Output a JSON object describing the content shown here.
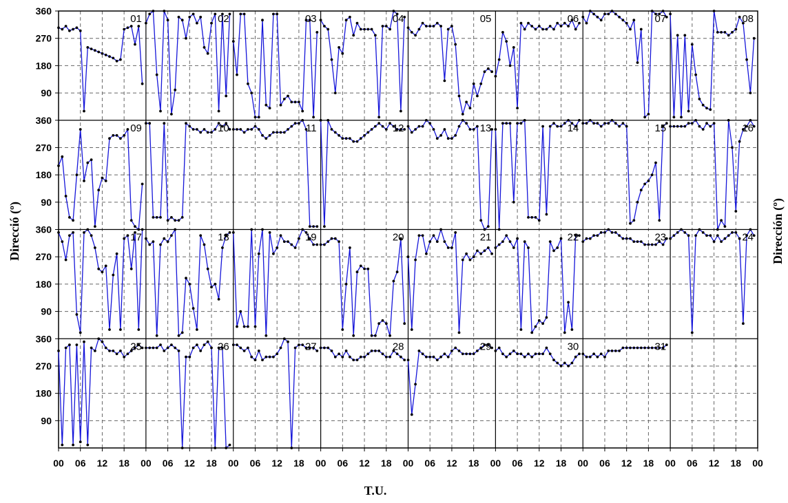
{
  "chart_data": {
    "type": "line",
    "ylabel_left": "Direcció (º)",
    "ylabel_right": "Dirección (º)",
    "xlabel": "T.U.",
    "y_ticks": [
      "360",
      "270",
      "180",
      "90"
    ],
    "x_ticks": [
      "00",
      "06",
      "12",
      "18",
      "00",
      "06",
      "12",
      "18",
      "00",
      "06",
      "12",
      "18",
      "00",
      "06",
      "12",
      "18",
      "00",
      "06",
      "12",
      "18",
      "00",
      "06",
      "12",
      "18",
      "00",
      "06",
      "12",
      "18",
      "00",
      "06",
      "12",
      "18",
      "00"
    ],
    "ylim": [
      0,
      360
    ],
    "x_hours_per_day": 24,
    "days_per_row": 8,
    "rows": 4,
    "grid": true,
    "colors": {
      "line": "#1515d9",
      "point": "#000000",
      "frame": "#000000",
      "grid": "#666666"
    },
    "days": [
      {
        "label": "01",
        "values": [
          305,
          300,
          310,
          295,
          300,
          305,
          295,
          30,
          240,
          235,
          230,
          225,
          220,
          215,
          210,
          205,
          195,
          200,
          300,
          305,
          310,
          250,
          310,
          120
        ]
      },
      {
        "label": "02",
        "values": [
          320,
          350,
          360,
          150,
          30,
          360,
          330,
          20,
          100,
          340,
          330,
          270,
          340,
          350,
          320,
          340,
          240,
          220,
          320,
          350,
          30,
          350,
          80,
          350
        ]
      },
      {
        "label": "03",
        "values": [
          260,
          150,
          350,
          350,
          120,
          90,
          10,
          10,
          330,
          50,
          40,
          350,
          350,
          50,
          70,
          80,
          60,
          60,
          60,
          30,
          330,
          330,
          10,
          290
        ]
      },
      {
        "label": "04",
        "values": [
          330,
          310,
          300,
          200,
          90,
          240,
          220,
          330,
          340,
          280,
          320,
          300,
          300,
          300,
          300,
          280,
          10,
          310,
          310,
          300,
          360,
          350,
          30,
          340
        ]
      },
      {
        "label": "05",
        "values": [
          305,
          290,
          280,
          300,
          320,
          310,
          310,
          310,
          320,
          310,
          130,
          300,
          310,
          250,
          80,
          20,
          60,
          40,
          120,
          80,
          120,
          160,
          170,
          160
        ]
      },
      {
        "label": "06",
        "values": [
          145,
          200,
          290,
          260,
          180,
          240,
          40,
          320,
          300,
          320,
          310,
          300,
          310,
          300,
          300,
          310,
          300,
          320,
          310,
          320,
          310,
          330,
          300,
          320
        ]
      },
      {
        "label": "07",
        "values": [
          340,
          320,
          360,
          350,
          340,
          330,
          350,
          350,
          360,
          350,
          340,
          330,
          320,
          300,
          330,
          190,
          300,
          10,
          20,
          360,
          350,
          350,
          360,
          340
        ]
      },
      {
        "label": "08",
        "values": [
          350,
          10,
          280,
          10,
          280,
          30,
          250,
          150,
          70,
          50,
          40,
          35,
          360,
          290,
          290,
          290,
          280,
          290,
          300,
          340,
          320,
          200,
          90,
          270
        ]
      },
      {
        "label": "09",
        "values": [
          210,
          240,
          110,
          40,
          30,
          180,
          330,
          160,
          220,
          230,
          10,
          130,
          170,
          160,
          300,
          310,
          310,
          300,
          310,
          330,
          30,
          10,
          0,
          150
        ]
      },
      {
        "label": "10",
        "values": [
          350,
          350,
          40,
          40,
          40,
          350,
          30,
          40,
          30,
          30,
          40,
          350,
          340,
          330,
          330,
          320,
          330,
          320,
          320,
          330,
          350,
          340,
          350,
          330
        ]
      },
      {
        "label": "11",
        "values": [
          330,
          330,
          330,
          320,
          330,
          330,
          340,
          330,
          310,
          300,
          310,
          320,
          320,
          320,
          320,
          330,
          340,
          350,
          350,
          360,
          330,
          10,
          10,
          10
        ]
      },
      {
        "label": "12",
        "values": [
          360,
          10,
          360,
          330,
          320,
          310,
          300,
          300,
          300,
          290,
          290,
          300,
          310,
          320,
          330,
          340,
          350,
          340,
          330,
          350,
          340,
          330,
          330,
          330
        ]
      },
      {
        "label": "13",
        "values": [
          340,
          320,
          330,
          340,
          340,
          360,
          350,
          330,
          300,
          310,
          330,
          300,
          300,
          310,
          340,
          360,
          350,
          330,
          330,
          340,
          30,
          0,
          10,
          330
        ]
      },
      {
        "label": "14",
        "values": [
          330,
          0,
          350,
          350,
          350,
          90,
          350,
          350,
          360,
          40,
          40,
          40,
          30,
          340,
          50,
          340,
          350,
          340,
          340,
          350,
          360,
          350,
          340,
          360
        ]
      },
      {
        "label": "15",
        "values": [
          350,
          350,
          360,
          350,
          350,
          340,
          350,
          350,
          360,
          350,
          340,
          350,
          340,
          20,
          30,
          90,
          130,
          150,
          160,
          180,
          220,
          30,
          340,
          350
        ]
      },
      {
        "label": "16",
        "values": [
          340,
          340,
          340,
          340,
          340,
          350,
          350,
          360,
          340,
          330,
          350,
          340,
          350,
          0,
          30,
          10,
          360,
          270,
          60,
          290,
          330,
          340,
          360,
          340
        ]
      },
      {
        "label": "17",
        "values": [
          350,
          320,
          260,
          340,
          350,
          80,
          20,
          350,
          360,
          340,
          300,
          230,
          220,
          240,
          30,
          210,
          280,
          30,
          330,
          340,
          230,
          350,
          30,
          360
        ]
      },
      {
        "label": "18",
        "values": [
          330,
          310,
          320,
          10,
          310,
          330,
          320,
          340,
          360,
          10,
          20,
          200,
          180,
          100,
          30,
          340,
          310,
          230,
          170,
          180,
          130,
          300,
          340,
          350
        ]
      },
      {
        "label": "19",
        "values": [
          350,
          40,
          90,
          40,
          40,
          360,
          40,
          280,
          360,
          10,
          350,
          280,
          300,
          340,
          320,
          320,
          310,
          300,
          330,
          360,
          350,
          330,
          310,
          310
        ]
      },
      {
        "label": "20",
        "values": [
          310,
          310,
          320,
          330,
          330,
          320,
          30,
          180,
          300,
          10,
          220,
          240,
          230,
          230,
          10,
          10,
          50,
          60,
          50,
          10,
          190,
          220,
          330,
          50
        ]
      },
      {
        "label": "21",
        "values": [
          270,
          30,
          260,
          340,
          340,
          280,
          320,
          340,
          320,
          360,
          320,
          300,
          300,
          350,
          20,
          260,
          280,
          260,
          270,
          290,
          280,
          290,
          300,
          280
        ]
      },
      {
        "label": "22",
        "values": [
          300,
          310,
          320,
          340,
          320,
          300,
          330,
          30,
          320,
          300,
          20,
          40,
          60,
          50,
          70,
          320,
          290,
          300,
          330,
          20,
          120,
          30,
          340,
          340
        ]
      },
      {
        "label": "23",
        "values": [
          320,
          330,
          330,
          340,
          340,
          350,
          350,
          360,
          350,
          350,
          340,
          330,
          330,
          330,
          320,
          320,
          320,
          310,
          310,
          310,
          310,
          320,
          310,
          330
        ]
      },
      {
        "label": "24",
        "values": [
          330,
          340,
          350,
          360,
          350,
          340,
          20,
          340,
          360,
          350,
          340,
          340,
          320,
          340,
          320,
          330,
          340,
          350,
          350,
          330,
          50,
          340,
          360,
          340
        ]
      },
      {
        "label": "25",
        "values": [
          320,
          10,
          330,
          340,
          10,
          340,
          20,
          350,
          10,
          330,
          320,
          360,
          350,
          330,
          320,
          320,
          310,
          320,
          300,
          310,
          320,
          330,
          340,
          330
        ]
      },
      {
        "label": "26",
        "values": [
          330,
          330,
          330,
          330,
          340,
          320,
          330,
          340,
          330,
          320,
          0,
          300,
          300,
          330,
          340,
          320,
          340,
          350,
          330,
          0,
          330,
          330,
          0,
          10
        ]
      },
      {
        "label": "27",
        "values": [
          340,
          340,
          330,
          320,
          330,
          300,
          290,
          320,
          290,
          300,
          300,
          300,
          310,
          330,
          360,
          350,
          0,
          330,
          340,
          340,
          330,
          330,
          330,
          320
        ]
      },
      {
        "label": "28",
        "values": [
          330,
          330,
          330,
          320,
          300,
          310,
          300,
          320,
          300,
          290,
          290,
          300,
          300,
          310,
          320,
          320,
          320,
          310,
          300,
          300,
          320,
          310,
          300,
          290
        ]
      },
      {
        "label": "29",
        "values": [
          290,
          110,
          210,
          320,
          310,
          300,
          300,
          300,
          290,
          300,
          310,
          300,
          320,
          330,
          320,
          310,
          310,
          310,
          310,
          320,
          330,
          340,
          340,
          330
        ]
      },
      {
        "label": "30",
        "values": [
          320,
          330,
          310,
          300,
          310,
          320,
          310,
          310,
          300,
          310,
          300,
          310,
          310,
          310,
          330,
          310,
          290,
          280,
          270,
          280,
          270,
          280,
          300,
          310
        ]
      },
      {
        "label": "31",
        "values": [
          310,
          300,
          300,
          310,
          300,
          310,
          300,
          320,
          320,
          320,
          320,
          330,
          330,
          330,
          330,
          330,
          330,
          330,
          330,
          330,
          330,
          330,
          330,
          340
        ]
      }
    ]
  }
}
